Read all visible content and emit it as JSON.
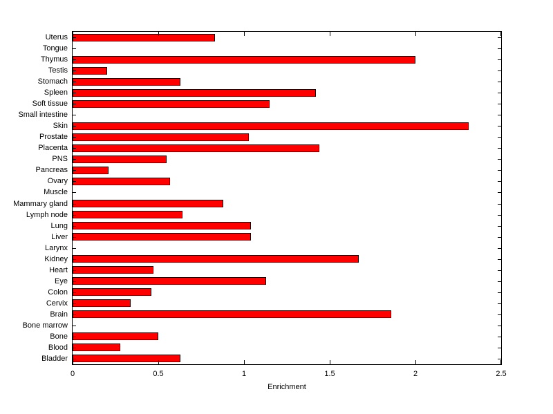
{
  "figure": {
    "background": "#ffffff"
  },
  "chart_data": {
    "type": "bar",
    "orientation": "horizontal",
    "title": "",
    "xlabel": "Enrichment",
    "ylabel": "",
    "xlim": [
      0,
      2.5
    ],
    "xticks": [
      0,
      0.5,
      1,
      1.5,
      2,
      2.5
    ],
    "xtick_labels": [
      "0",
      "0.5",
      "1",
      "1.5",
      "2",
      "2.5"
    ],
    "grid": false,
    "legend_position": "none",
    "bar_color": "#ff0000",
    "bar_edge_color": "#000000",
    "axis_color": "#000000",
    "categories": [
      "Uterus",
      "Tongue",
      "Thymus",
      "Testis",
      "Stomach",
      "Spleen",
      "Soft tissue",
      "Small intestine",
      "Skin",
      "Prostate",
      "Placenta",
      "PNS",
      "Pancreas",
      "Ovary",
      "Muscle",
      "Mammary gland",
      "Lymph node",
      "Lung",
      "Liver",
      "Larynx",
      "Kidney",
      "Heart",
      "Eye",
      "Colon",
      "Cervix",
      "Brain",
      "Bone marrow",
      "Bone",
      "Blood",
      "Bladder"
    ],
    "values": [
      0.83,
      0,
      2.0,
      0.2,
      0.63,
      1.42,
      1.15,
      0,
      2.31,
      1.03,
      1.44,
      0.55,
      0.21,
      0.57,
      0,
      0.88,
      0.64,
      1.04,
      1.04,
      0,
      1.67,
      0.47,
      1.13,
      0.46,
      0.34,
      1.86,
      0,
      0.5,
      0.28,
      0.63
    ]
  }
}
